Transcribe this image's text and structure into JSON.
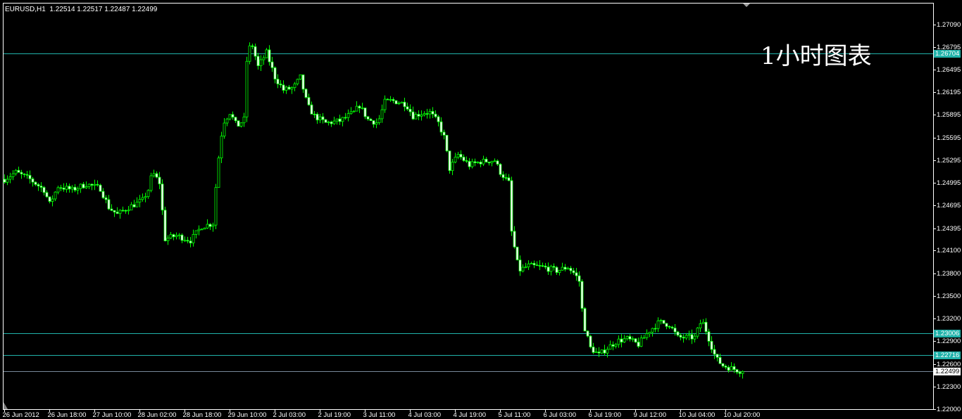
{
  "header": {
    "symbol_timeframe": "EURUSD,H1",
    "open": "1.22514",
    "high": "1.22517",
    "low": "1.22487",
    "close": "1.22499"
  },
  "overlay_text": "1小时图表",
  "colors": {
    "background": "#000000",
    "candle": "#00ff00",
    "hline": "#20b2aa",
    "bid_line": "#778899",
    "foreground": "#ffffff"
  },
  "chart_data": {
    "type": "candlestick",
    "symbol": "EURUSD",
    "timeframe": "H1",
    "ylim": [
      1.22,
      1.2709
    ],
    "price_ticks": [
      "1.27090",
      "1.26795",
      "1.26495",
      "1.26195",
      "1.25895",
      "1.25595",
      "1.25295",
      "1.24995",
      "1.24695",
      "1.24395",
      "1.24100",
      "1.23800",
      "1.23500",
      "1.23200",
      "1.22900",
      "1.22600",
      "1.22300",
      "1.22000"
    ],
    "time_ticks": [
      "26 Jun 2012",
      "26 Jun 18:00",
      "27 Jun 10:00",
      "28 Jun 02:00",
      "28 Jun 18:00",
      "29 Jun 10:00",
      "2 Jul 03:00",
      "2 Jul 19:00",
      "3 Jul 11:00",
      "4 Jul 03:00",
      "4 Jul 19:00",
      "5 Jul 11:00",
      "6 Jul 03:00",
      "6 Jul 19:00",
      "9 Jul 12:00",
      "10 Jul 04:00",
      "10 Jul 20:00"
    ],
    "bars_per_time_tick": 16,
    "horizontal_lines": [
      {
        "price": "1.26704",
        "style": "highlight"
      },
      {
        "price": "1.23006",
        "style": "highlight"
      },
      {
        "price": "1.22716",
        "style": "highlight"
      },
      {
        "price": "1.22499",
        "style": "bid"
      }
    ],
    "close_path": [
      [
        0,
        1.25043
      ],
      [
        4,
        1.25136
      ],
      [
        9,
        1.25043
      ],
      [
        14,
        1.24903
      ],
      [
        16,
        1.24717
      ],
      [
        19,
        1.2495
      ],
      [
        24,
        1.24903
      ],
      [
        29,
        1.24978
      ],
      [
        34,
        1.24922
      ],
      [
        37,
        1.24671
      ],
      [
        40,
        1.24578
      ],
      [
        44,
        1.24671
      ],
      [
        49,
        1.24764
      ],
      [
        51,
        1.24903
      ],
      [
        52.5,
        1.25136
      ],
      [
        55,
        1.24996
      ],
      [
        57,
        1.24252
      ],
      [
        61,
        1.24298
      ],
      [
        66,
        1.24233
      ],
      [
        70,
        1.2442
      ],
      [
        74,
        1.24457
      ],
      [
        75.5,
        1.25182
      ],
      [
        77.5,
        1.25787
      ],
      [
        80,
        1.25927
      ],
      [
        82.5,
        1.25741
      ],
      [
        85,
        1.25834
      ],
      [
        86.2,
        1.26764
      ],
      [
        88,
        1.26811
      ],
      [
        90,
        1.26532
      ],
      [
        93,
        1.26718
      ],
      [
        96,
        1.26392
      ],
      [
        99,
        1.26225
      ],
      [
        102.5,
        1.26253
      ],
      [
        105,
        1.26392
      ],
      [
        107.5,
        1.2602
      ],
      [
        110,
        1.2588
      ],
      [
        114,
        1.25787
      ],
      [
        119,
        1.25815
      ],
      [
        124,
        1.25927
      ],
      [
        126,
        1.2602
      ],
      [
        129,
        1.25834
      ],
      [
        132.5,
        1.25787
      ],
      [
        135,
        1.26066
      ],
      [
        137.5,
        1.26085
      ],
      [
        142.5,
        1.26039
      ],
      [
        145,
        1.2588
      ],
      [
        149,
        1.25927
      ],
      [
        151,
        1.25927
      ],
      [
        154,
        1.25787
      ],
      [
        156,
        1.25601
      ],
      [
        158,
        1.25182
      ],
      [
        161,
        1.25369
      ],
      [
        165,
        1.25229
      ],
      [
        169,
        1.25276
      ],
      [
        174,
        1.25294
      ],
      [
        176,
        1.25136
      ],
      [
        179,
        1.24996
      ],
      [
        180,
        1.24345
      ],
      [
        182.5,
        1.23833
      ],
      [
        186,
        1.23898
      ],
      [
        191,
        1.2388
      ],
      [
        196,
        1.23833
      ],
      [
        200,
        1.2388
      ],
      [
        202.5,
        1.23787
      ],
      [
        204,
        1.23694
      ],
      [
        205.5,
        1.23135
      ],
      [
        208,
        1.2281
      ],
      [
        211,
        1.22717
      ],
      [
        214,
        1.2281
      ],
      [
        217.5,
        1.22903
      ],
      [
        221,
        1.22931
      ],
      [
        225,
        1.22856
      ],
      [
        229,
        1.23042
      ],
      [
        232.5,
        1.23154
      ],
      [
        236,
        1.23117
      ],
      [
        239,
        1.22949
      ],
      [
        245,
        1.22949
      ],
      [
        247.5,
        1.23182
      ],
      [
        249,
        1.23042
      ],
      [
        252.5,
        1.2267
      ],
      [
        255,
        1.22577
      ],
      [
        258.75,
        1.22531
      ],
      [
        262,
        1.22499
      ]
    ]
  }
}
